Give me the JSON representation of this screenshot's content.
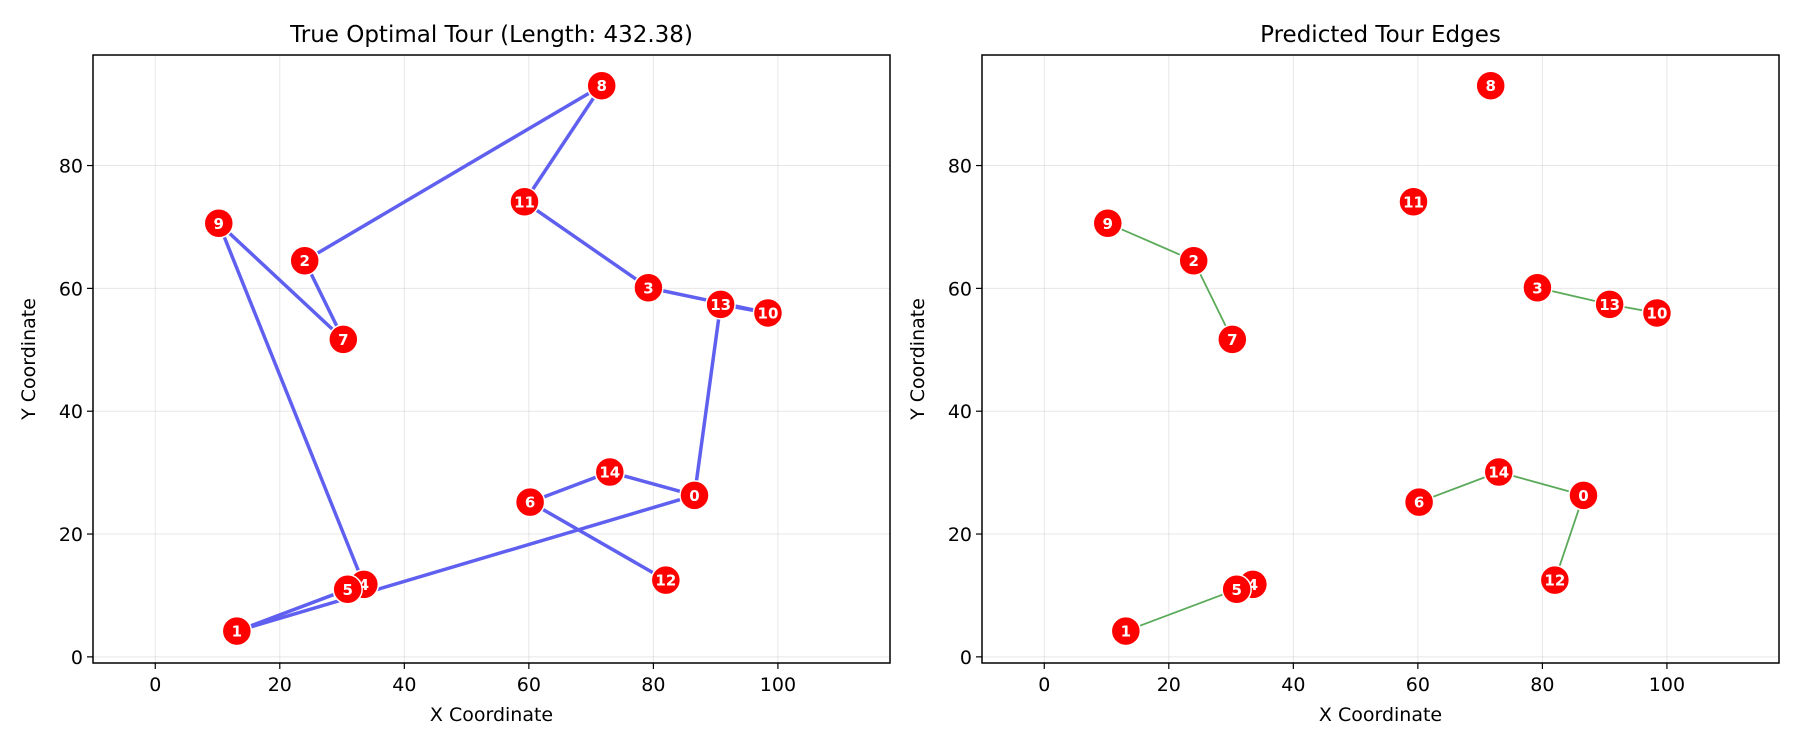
{
  "nodes": [
    {
      "id": "0",
      "x": 86.6,
      "y": 26.3
    },
    {
      "id": "1",
      "x": 13.1,
      "y": 4.2
    },
    {
      "id": "2",
      "x": 24.0,
      "y": 64.5
    },
    {
      "id": "3",
      "x": 79.2,
      "y": 60.1
    },
    {
      "id": "4",
      "x": 33.5,
      "y": 11.8
    },
    {
      "id": "5",
      "x": 30.9,
      "y": 11.0
    },
    {
      "id": "6",
      "x": 60.2,
      "y": 25.2
    },
    {
      "id": "7",
      "x": 30.2,
      "y": 51.7
    },
    {
      "id": "8",
      "x": 71.7,
      "y": 93.0
    },
    {
      "id": "9",
      "x": 10.2,
      "y": 70.6
    },
    {
      "id": "10",
      "x": 98.4,
      "y": 56.0
    },
    {
      "id": "11",
      "x": 59.3,
      "y": 74.1
    },
    {
      "id": "12",
      "x": 82.0,
      "y": 12.5
    },
    {
      "id": "13",
      "x": 90.8,
      "y": 57.4
    },
    {
      "id": "14",
      "x": 73.0,
      "y": 30.1
    }
  ],
  "chart_data": [
    {
      "type": "scatter",
      "title": "True Optimal Tour (Length: 432.38)",
      "xlabel": "X Coordinate",
      "ylabel": "Y Coordinate",
      "xlim": [
        -10,
        118
      ],
      "ylim": [
        -1,
        98
      ],
      "xticks": [
        0,
        20,
        40,
        60,
        80,
        100
      ],
      "yticks": [
        0,
        20,
        40,
        60,
        80
      ],
      "grid": true,
      "edge_color": "#6060f0",
      "node_color": "#ff0000",
      "edges": [
        [
          "0",
          "13"
        ],
        [
          "13",
          "10"
        ],
        [
          "10",
          "3"
        ],
        [
          "3",
          "11"
        ],
        [
          "11",
          "8"
        ],
        [
          "8",
          "2"
        ],
        [
          "2",
          "7"
        ],
        [
          "7",
          "9"
        ],
        [
          "9",
          "4"
        ],
        [
          "4",
          "5"
        ],
        [
          "5",
          "1"
        ],
        [
          "1",
          "0"
        ],
        [
          "0",
          "14"
        ],
        [
          "14",
          "6"
        ],
        [
          "6",
          "12"
        ]
      ]
    },
    {
      "type": "scatter",
      "title": "Predicted Tour Edges",
      "xlabel": "X Coordinate",
      "ylabel": "Y Coordinate",
      "xlim": [
        -10,
        118
      ],
      "ylim": [
        -1,
        98
      ],
      "xticks": [
        0,
        20,
        40,
        60,
        80,
        100
      ],
      "yticks": [
        0,
        20,
        40,
        60,
        80
      ],
      "grid": true,
      "edge_color": "#5aaa5a",
      "node_color": "#ff0000",
      "edges": [
        [
          "9",
          "2"
        ],
        [
          "2",
          "7"
        ],
        [
          "3",
          "13"
        ],
        [
          "13",
          "10"
        ],
        [
          "6",
          "14"
        ],
        [
          "14",
          "0"
        ],
        [
          "0",
          "12"
        ],
        [
          "1",
          "5"
        ]
      ]
    }
  ]
}
